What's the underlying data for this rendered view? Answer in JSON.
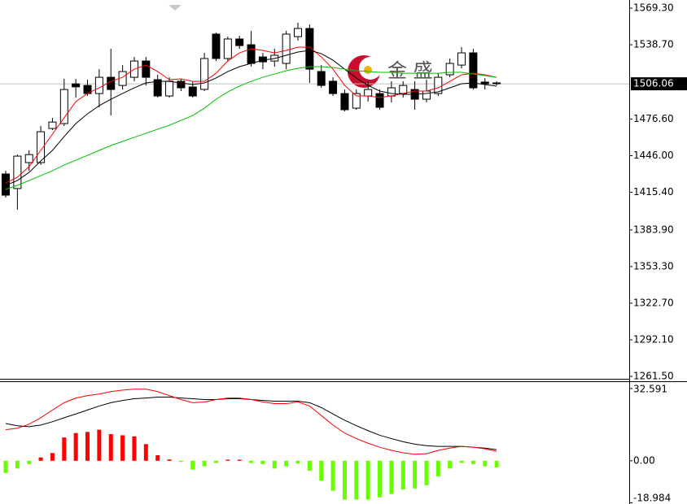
{
  "chart_data": [
    {
      "type": "candlestick",
      "ylim": [
        1258.8,
        1576.1
      ],
      "yticks": [
        {
          "value": 1569.3,
          "label": "1569.30"
        },
        {
          "value": 1538.7,
          "label": "1538.70"
        },
        {
          "value": 1476.6,
          "label": "1476.60"
        },
        {
          "value": 1446,
          "label": "1446.00"
        },
        {
          "value": 1415.4,
          "label": "1415.40"
        },
        {
          "value": 1383.9,
          "label": "1383.90"
        },
        {
          "value": 1353.3,
          "label": "1353.30"
        },
        {
          "value": 1322.7,
          "label": "1322.70"
        },
        {
          "value": 1292.1,
          "label": "1292.10"
        },
        {
          "value": 1261.5,
          "label": "1261.50"
        }
      ],
      "last_price": 1506.06,
      "watermark": "金 盛",
      "up_color": "#ffffff",
      "down_color": "#000000",
      "open": [
        1430.7,
        1418.5,
        1440.2,
        1440.2,
        1468.7,
        1472.8,
        1506.0,
        1504.7,
        1497.9,
        1511.5,
        1504.7,
        1511.5,
        1525.1,
        1509.5,
        1495.9,
        1508.2,
        1503.4,
        1501.4,
        1547.6,
        1527.2,
        1543.5,
        1538.7,
        1528.5,
        1525.1,
        1523.1,
        1545.5,
        1552.3,
        1516.3,
        1508.2,
        1497.9,
        1485.7,
        1495.9,
        1497.9,
        1495.9,
        1498.0,
        1501.3,
        1493.2,
        1497.9,
        1513.6,
        1521.7,
        1531.9,
        1507.5,
        1506.8
      ],
      "high": [
        1433.4,
        1447.0,
        1450.4,
        1470.8,
        1477.6,
        1510.2,
        1510.2,
        1509.5,
        1518.3,
        1535.3,
        1521.7,
        1528.5,
        1528.5,
        1513.6,
        1511.5,
        1510.2,
        1508.2,
        1531.9,
        1548.9,
        1545.5,
        1546.2,
        1550.3,
        1531.9,
        1535.3,
        1550.3,
        1557.1,
        1555.7,
        1521.7,
        1511.5,
        1501.3,
        1501.3,
        1508.2,
        1501.3,
        1508.2,
        1508.2,
        1508.2,
        1509.5,
        1514.9,
        1527.2,
        1536.7,
        1535.3,
        1510.8,
        1508.2
      ],
      "low": [
        1411.0,
        1400.8,
        1433.4,
        1438.2,
        1467.4,
        1470.8,
        1494.6,
        1495.9,
        1486.4,
        1479.6,
        1501.3,
        1508.2,
        1504.7,
        1494.6,
        1494.6,
        1500.0,
        1494.6,
        1500.0,
        1525.1,
        1525.1,
        1535.3,
        1520.4,
        1518.3,
        1520.4,
        1518.3,
        1542.1,
        1506.8,
        1502.7,
        1495.9,
        1483.0,
        1484.4,
        1491.2,
        1484.4,
        1490.5,
        1494.6,
        1484.4,
        1490.5,
        1495.9,
        1511.5,
        1519.0,
        1501.3,
        1501.3,
        1504.7
      ],
      "close": [
        1413.0,
        1445.6,
        1446.9,
        1466.0,
        1474.1,
        1501.3,
        1503.5,
        1497.9,
        1511.5,
        1501.3,
        1516.3,
        1525.1,
        1511.5,
        1495.9,
        1508.2,
        1502.7,
        1495.9,
        1527.2,
        1527.2,
        1543.5,
        1538.0,
        1523.1,
        1524.4,
        1529.9,
        1547.6,
        1552.3,
        1518.3,
        1504.7,
        1497.9,
        1484.4,
        1497.9,
        1501.3,
        1486.4,
        1502.7,
        1504.7,
        1493.2,
        1500.0,
        1511.5,
        1523.1,
        1531.9,
        1502.7,
        1506.1,
        1506.1
      ],
      "series": [
        {
          "color": "#ff0000",
          "values": [
            1423.2,
            1428.0,
            1436.8,
            1450.4,
            1464.0,
            1477.6,
            1491.2,
            1498.0,
            1502.7,
            1508.1,
            1511.5,
            1518.3,
            1521.7,
            1516.3,
            1509.5,
            1510.2,
            1508.1,
            1508.1,
            1514.9,
            1525.1,
            1531.9,
            1535.3,
            1534.0,
            1531.9,
            1534.0,
            1536.7,
            1536.7,
            1528.5,
            1518.3,
            1504.7,
            1495.9,
            1495.9,
            1494.6,
            1495.9,
            1498.0,
            1500.0,
            1500.0,
            1502.7,
            1508.1,
            1513.6,
            1514.9,
            1513.6,
            1511.5
          ]
        },
        {
          "color": "#000000",
          "values": [
            1421.2,
            1425.2,
            1432.0,
            1441.6,
            1450.4,
            1461.9,
            1472.8,
            1481.0,
            1487.8,
            1493.2,
            1498.0,
            1502.7,
            1506.8,
            1508.1,
            1508.1,
            1506.8,
            1505.4,
            1506.8,
            1510.9,
            1516.3,
            1520.4,
            1523.1,
            1525.8,
            1527.2,
            1529.9,
            1532.6,
            1534.0,
            1531.3,
            1525.8,
            1518.3,
            1510.9,
            1504.7,
            1500.0,
            1498.0,
            1497.3,
            1497.3,
            1498.0,
            1499.3,
            1502.7,
            1506.1,
            1506.8,
            1505.4,
            1504.1
          ]
        },
        {
          "color": "#00c000",
          "values": [
            1417.8,
            1421.2,
            1425.2,
            1429.3,
            1433.4,
            1438.2,
            1442.2,
            1446.3,
            1450.4,
            1454.5,
            1457.9,
            1461.3,
            1464.7,
            1468.1,
            1471.4,
            1475.5,
            1479.6,
            1485.7,
            1493.2,
            1499.3,
            1504.1,
            1508.1,
            1511.5,
            1514.3,
            1517.0,
            1519.0,
            1520.4,
            1520.4,
            1519.7,
            1518.3,
            1517.0,
            1516.3,
            1515.6,
            1515.6,
            1514.9,
            1514.9,
            1514.9,
            1514.9,
            1515.6,
            1515.6,
            1514.3,
            1512.9,
            1511.5
          ]
        }
      ]
    },
    {
      "type": "macd",
      "ylim": [
        -19.5,
        35.5
      ],
      "yticks": [
        32.591,
        {
          "value": 0,
          "label": "0.00"
        },
        -18.984
      ],
      "pos_color": "#ff0000",
      "neg_color": "#66ff00",
      "values": [
        -5.5,
        -3.5,
        -1.5,
        1.5,
        3.5,
        10.5,
        12.5,
        13,
        14,
        12,
        11.5,
        11,
        7.5,
        2.5,
        0.6,
        -0.5,
        -4,
        -2.5,
        -1,
        0.5,
        0.5,
        -1,
        -1.5,
        -3.5,
        -2.5,
        -1.2,
        -4.5,
        -9,
        -13.5,
        -17.5,
        -17.5,
        -17.5,
        -16.5,
        -15,
        -13,
        -12.5,
        -11,
        -7,
        -3.5,
        -1,
        -1.5,
        -2.5,
        -3
      ],
      "series": [
        {
          "color": "#000000",
          "values": [
            16.8,
            15.8,
            15.4,
            16.1,
            17.6,
            19.4,
            21.1,
            22.9,
            24.7,
            26.2,
            27.2,
            28.0,
            28.3,
            28.7,
            28.7,
            28.3,
            28.0,
            27.6,
            27.6,
            28.0,
            28.0,
            27.6,
            27.2,
            26.9,
            26.9,
            26.9,
            26.2,
            24.0,
            21.1,
            18.3,
            15.8,
            13.6,
            11.5,
            10.0,
            8.6,
            7.5,
            6.8,
            6.5,
            6.5,
            6.5,
            6.1,
            5.7,
            5.0
          ]
        },
        {
          "color": "#ff0000",
          "values": [
            14.0,
            14.7,
            16.5,
            19.4,
            22.9,
            26.2,
            28.3,
            29.4,
            30.1,
            31.2,
            31.9,
            32.3,
            32.3,
            31.2,
            29.4,
            27.6,
            26.2,
            26.5,
            27.6,
            28.3,
            28.3,
            27.6,
            26.5,
            25.8,
            25.8,
            26.5,
            24.7,
            20.4,
            16.1,
            12.5,
            10.0,
            7.9,
            6.1,
            4.7,
            3.6,
            2.9,
            3.2,
            4.7,
            5.7,
            6.5,
            6.1,
            5.4,
            4.3
          ]
        }
      ]
    }
  ]
}
